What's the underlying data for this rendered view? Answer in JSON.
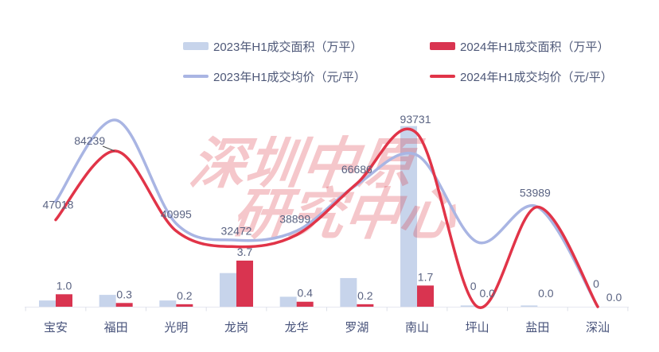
{
  "legend": {
    "items": [
      {
        "label": "2023年H1成交面积（万平）",
        "swatch": "bar",
        "color": "#c7d4eb"
      },
      {
        "label": "2024年H1成交面积（万平）",
        "swatch": "bar",
        "color": "#d93450"
      },
      {
        "label": "2023年H1成交均价（元/平）",
        "swatch": "line",
        "color": "#a9b5e3"
      },
      {
        "label": "2024年H1成交均价（元/平）",
        "swatch": "line",
        "color": "#e13448"
      }
    ]
  },
  "watermark": {
    "line1": "深圳中原",
    "line2": "研究中心"
  },
  "colors": {
    "bar_2023": "#c7d4eb",
    "bar_2024": "#d93450",
    "line_2023": "#a9b5e3",
    "line_2024": "#e13448",
    "value_label": "#5a6382",
    "axis_label": "#47527a",
    "axis_line": "#e6e8f0",
    "watermark_pink": "rgba(220,53,69,0.28)"
  },
  "chart_data": {
    "type": "combo-bar-line",
    "categories": [
      "宝安",
      "福田",
      "光明",
      "龙岗",
      "龙华",
      "罗湖",
      "南山",
      "坪山",
      "盐田",
      "深汕"
    ],
    "series": [
      {
        "name": "2023年H1成交面积（万平）",
        "type": "bar",
        "color": "#c7d4eb",
        "values": [
          0.5,
          0.95,
          0.5,
          2.7,
          0.8,
          2.3,
          14.5,
          0.1,
          0.1,
          0
        ],
        "data_labels_shown": false,
        "values_estimated": true
      },
      {
        "name": "2024年H1成交面积（万平）",
        "type": "bar",
        "color": "#d93450",
        "values": [
          1.0,
          0.3,
          0.2,
          3.7,
          0.4,
          0.2,
          1.7,
          0.0,
          0.0,
          0.0
        ],
        "labels": [
          "1.0",
          "0.3",
          "0.2",
          "3.7",
          "0.4",
          "0.2",
          "1.7",
          "0.0",
          "0.0",
          "0.0"
        ],
        "data_labels_shown": true
      },
      {
        "name": "2023年H1成交均价（元/平）",
        "type": "line",
        "color": "#a9b5e3",
        "values": [
          57000,
          101000,
          45000,
          36000,
          41000,
          66000,
          82000,
          35000,
          54000,
          0
        ],
        "data_labels_shown": false,
        "values_estimated": true
      },
      {
        "name": "2024年H1成交均价（元/平）",
        "type": "line",
        "color": "#e13448",
        "values": [
          47018,
          84239,
          40995,
          32472,
          38899,
          66686,
          93731,
          0,
          53989,
          0
        ],
        "labels": [
          "47018",
          "84239",
          "40995",
          "32472",
          "38899",
          "66686",
          "93731",
          "0",
          "53989",
          "0"
        ],
        "data_labels_shown": true
      }
    ],
    "axes": {
      "x_visible": true,
      "y_left_visible": false,
      "y_right_visible": false
    },
    "legend_position": "top",
    "grid": false
  }
}
